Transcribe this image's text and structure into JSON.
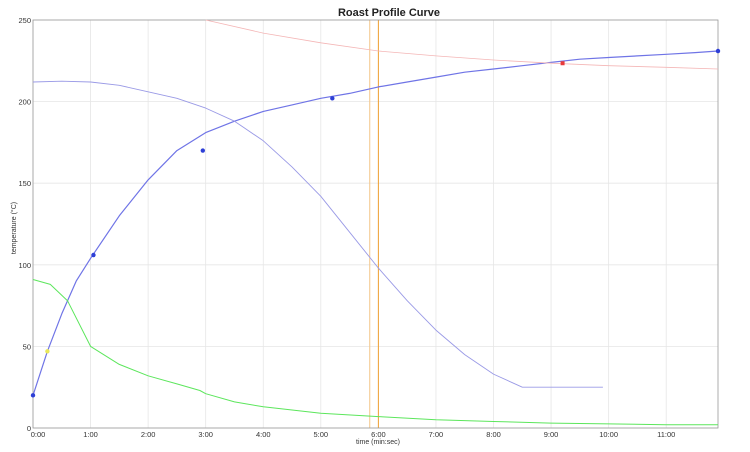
{
  "chart_data": {
    "type": "line",
    "title": "Roast Profile Curve",
    "xlabel": "time (min:sec)",
    "ylabel": "temperature (°C)",
    "xlim": [
      0,
      11.9
    ],
    "ylim": [
      0,
      250
    ],
    "grid": true,
    "x_ticks": [
      {
        "value": 0,
        "label": "0:00"
      },
      {
        "value": 1,
        "label": "1:00"
      },
      {
        "value": 2,
        "label": "2:00"
      },
      {
        "value": 3,
        "label": "3:00"
      },
      {
        "value": 4,
        "label": "4:00"
      },
      {
        "value": 5,
        "label": "5:00"
      },
      {
        "value": 6,
        "label": "6:00"
      },
      {
        "value": 7,
        "label": "7:00"
      },
      {
        "value": 8,
        "label": "8:00"
      },
      {
        "value": 9,
        "label": "9:00"
      },
      {
        "value": 10,
        "label": "10:00"
      },
      {
        "value": 11,
        "label": "11:00"
      }
    ],
    "y_ticks": [
      {
        "value": 0,
        "label": "0"
      },
      {
        "value": 50,
        "label": "50"
      },
      {
        "value": 100,
        "label": "100"
      },
      {
        "value": 150,
        "label": "150"
      },
      {
        "value": 200,
        "label": "200"
      },
      {
        "value": 250,
        "label": "250"
      }
    ],
    "vertical_markers": [
      {
        "x": 5.85,
        "color": "#f3c68a"
      },
      {
        "x": 6.0,
        "color": "#f0a030"
      }
    ],
    "series": [
      {
        "color": "#6f74e6",
        "stroke_width": 1.2,
        "x": [
          0,
          0.25,
          0.5,
          0.75,
          1.0,
          1.5,
          2.0,
          2.5,
          3.0,
          3.5,
          4.0,
          4.5,
          5.0,
          5.5,
          6.0,
          6.5,
          7.0,
          7.5,
          8.0,
          8.5,
          9.0,
          9.5,
          10.0,
          10.5,
          11.0,
          11.5,
          11.9
        ],
        "y": [
          20,
          47,
          70,
          90,
          104,
          130,
          152,
          170,
          181,
          188,
          194,
          198,
          202,
          205,
          209,
          212,
          215,
          218,
          220,
          222,
          224,
          226,
          227,
          228,
          229,
          230,
          231
        ]
      },
      {
        "color": "#9a9ae6",
        "stroke_width": 0.9,
        "x": [
          0,
          0.5,
          1.0,
          1.5,
          2.0,
          2.5,
          3.0,
          3.5,
          4.0,
          4.5,
          5.0,
          5.5,
          6.0,
          6.5,
          7.0,
          7.5,
          8.0,
          8.5,
          9.0,
          9.5,
          9.9
        ],
        "y": [
          212,
          212.5,
          212,
          210,
          206,
          202,
          196,
          188,
          176,
          160,
          142,
          120,
          98,
          78,
          60,
          45,
          33,
          25,
          25,
          25,
          25
        ]
      },
      {
        "color": "#5ce65c",
        "stroke_width": 1.0,
        "x": [
          0,
          0.3,
          0.6,
          1.0,
          1.5,
          2.0,
          2.5,
          2.9,
          3.0,
          3.5,
          4.0,
          5.0,
          6.0,
          7.0,
          8.0,
          9.0,
          10.0,
          11.0,
          11.9
        ],
        "y": [
          91,
          88,
          78,
          50,
          39,
          32,
          27,
          23,
          21,
          16,
          13,
          9,
          7,
          5,
          4,
          3,
          2.5,
          2,
          2
        ]
      },
      {
        "color": "#f4b6b6",
        "stroke_width": 0.8,
        "x": [
          3.0,
          4.0,
          5.0,
          6.0,
          7.0,
          8.0,
          9.0,
          10.0,
          11.0,
          11.9
        ],
        "y": [
          250,
          242,
          236,
          231,
          228,
          225.5,
          223.5,
          222,
          221,
          220
        ]
      }
    ],
    "markers": [
      {
        "x": 0,
        "y": 20,
        "color": "#2d3fd6"
      },
      {
        "x": 0.25,
        "y": 47,
        "color": "#e8e85a"
      },
      {
        "x": 1.05,
        "y": 106,
        "color": "#2d3fd6"
      },
      {
        "x": 2.95,
        "y": 170,
        "color": "#2d3fd6"
      },
      {
        "x": 5.2,
        "y": 202,
        "color": "#2d3fd6"
      },
      {
        "x": 9.2,
        "y": 223.5,
        "color": "#e83a3a"
      },
      {
        "x": 11.9,
        "y": 231,
        "color": "#2d3fd6"
      }
    ]
  }
}
